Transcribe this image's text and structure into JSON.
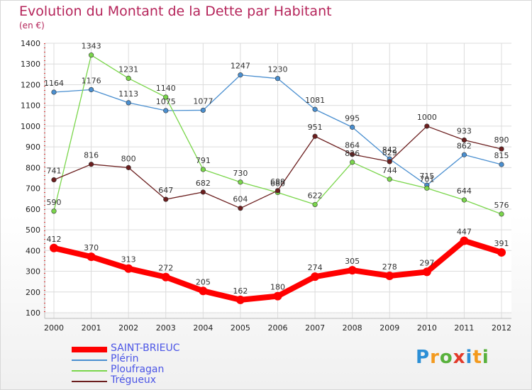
{
  "title": "Evolution du Montant de la Dette par Habitant",
  "subtitle": "(en €)",
  "logo": "Proxiti",
  "chart_data": {
    "type": "line",
    "title": "Evolution du Montant de la Dette par Habitant",
    "subtitle": "(en €)",
    "x": [
      "2000",
      "2001",
      "2002",
      "2003",
      "2004",
      "2005",
      "2006",
      "2007",
      "2008",
      "2009",
      "2010",
      "2011",
      "2012"
    ],
    "ylim": [
      100,
      1400
    ],
    "yticks": [
      100,
      200,
      300,
      400,
      500,
      600,
      700,
      800,
      900,
      1000,
      1100,
      1200,
      1300,
      1400
    ],
    "grid": true,
    "legend_position": "bottom-left",
    "series": [
      {
        "name": "SAINT-BRIEUC",
        "color": "#ff0000",
        "values": [
          412,
          370,
          313,
          272,
          205,
          162,
          180,
          274,
          305,
          278,
          297,
          447,
          391
        ]
      },
      {
        "name": "Plérin",
        "color": "#4a8fd0",
        "values": [
          1164,
          1176,
          1113,
          1075,
          1077,
          1247,
          1230,
          1081,
          995,
          842,
          715,
          862,
          815
        ]
      },
      {
        "name": "Ploufragan",
        "color": "#7ad64b",
        "values": [
          590,
          1343,
          1231,
          1140,
          791,
          730,
          680,
          622,
          826,
          744,
          701,
          644,
          576
        ]
      },
      {
        "name": "Trégueux",
        "color": "#6b1e1e",
        "values": [
          741,
          816,
          800,
          647,
          682,
          604,
          689,
          951,
          864,
          829,
          1000,
          933,
          890
        ]
      }
    ]
  }
}
